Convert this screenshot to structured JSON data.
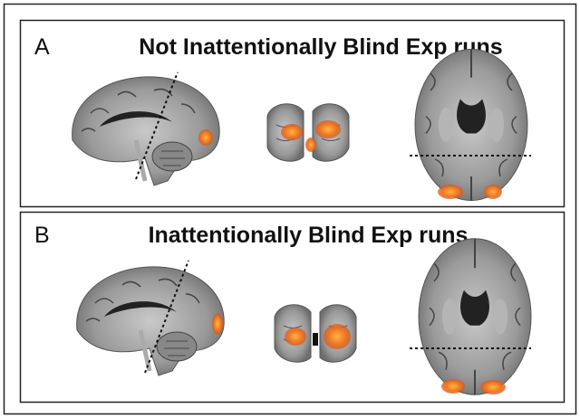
{
  "panels": [
    {
      "label": "A",
      "title": "Not Inattentionally Blind Exp runs"
    },
    {
      "label": "B",
      "title": "Inattentionally Blind Exp runs"
    }
  ]
}
